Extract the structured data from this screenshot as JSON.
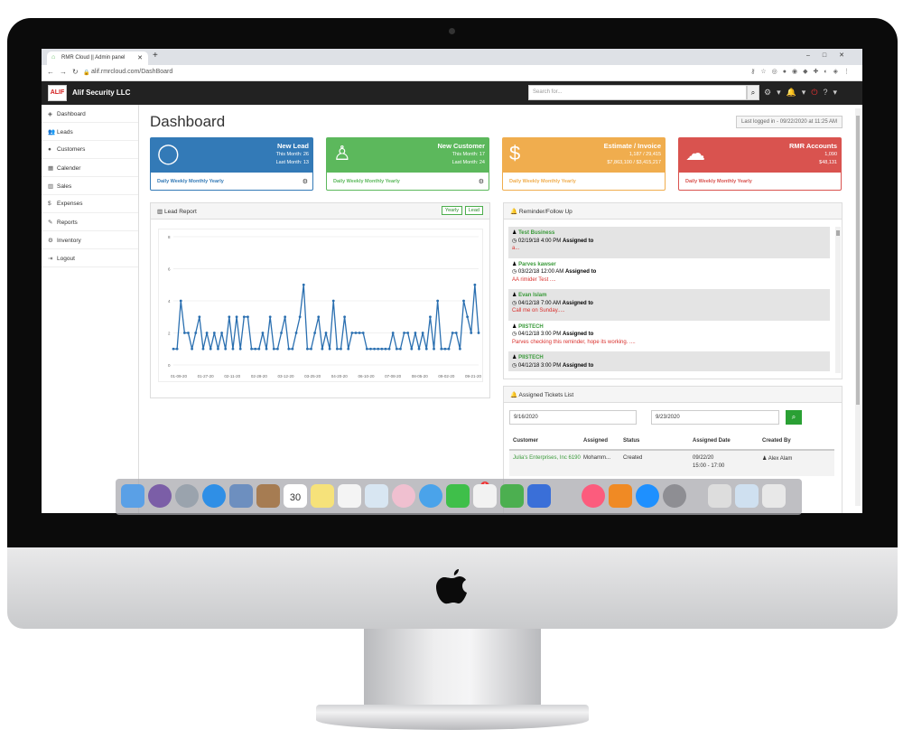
{
  "browser": {
    "tab_title": "RMR Cloud || Admin panel",
    "url": "alif.rmrcloud.com/DashBoard"
  },
  "app": {
    "brand": "Alif Security LLC",
    "logo_text": "ALIF",
    "search_placeholder": "Search for..."
  },
  "sidebar": {
    "items": [
      {
        "icon": "dashboard-icon",
        "label": "Dashboard"
      },
      {
        "icon": "leads-icon",
        "label": "Leads"
      },
      {
        "icon": "customers-icon",
        "label": "Customers"
      },
      {
        "icon": "calendar-icon",
        "label": "Calender"
      },
      {
        "icon": "sales-icon",
        "label": "Sales"
      },
      {
        "icon": "dollar-icon",
        "label": "Expenses"
      },
      {
        "icon": "reports-icon",
        "label": "Reports"
      },
      {
        "icon": "inventory-icon",
        "label": "Inventory"
      },
      {
        "icon": "logout-icon",
        "label": "Logout"
      }
    ]
  },
  "page": {
    "title": "Dashboard",
    "last_logged": "Last logged in - 09/22/2020 at 11:25 AM"
  },
  "cards": [
    {
      "title": "New Lead",
      "line1": "This Month: 26",
      "line2": "Last Month: 13",
      "footer": "Daily Weekly Monthly Yearly",
      "color": "#337ab7"
    },
    {
      "title": "New Customer",
      "line1": "This Month: 17",
      "line2": "Last Month: 24",
      "footer": "Daily Weekly Monthly Yearly",
      "color": "#5cb85c"
    },
    {
      "title": "Estimate / Invoice",
      "line1": "1,187 / 29,415",
      "line2": "$7,863,100 / $3,415,217",
      "footer": "Daily Weekly Monthly Yearly",
      "color": "#f0ad4e"
    },
    {
      "title": "RMR Accounts",
      "line1": "1,090",
      "line2": "$48,131",
      "footer": "Daily Weekly Monthly Yearly",
      "color": "#d9534f"
    }
  ],
  "lead_report": {
    "title": "Lead Report",
    "toggle1": "Yearly",
    "toggle2": "Lead"
  },
  "chart_data": {
    "type": "line",
    "title": "Lead Report",
    "ylim": [
      0,
      8
    ],
    "yticks": [
      "0",
      "2",
      "4",
      "6",
      "8"
    ],
    "xticks": [
      "01-09-20",
      "01-27-20",
      "02-11-20",
      "02-28-20",
      "03-12-20",
      "03-25-20",
      "04-20-20",
      "06-10-20",
      "07-08-20",
      "08-05-20",
      "09-02-20",
      "09-21-20"
    ],
    "values": [
      1,
      1,
      4,
      2,
      2,
      1,
      2,
      3,
      1,
      2,
      1,
      2,
      1,
      2,
      1,
      3,
      1,
      3,
      1,
      3,
      3,
      1,
      1,
      1,
      2,
      1,
      3,
      1,
      1,
      2,
      3,
      1,
      1,
      2,
      3,
      5,
      1,
      1,
      2,
      3,
      1,
      2,
      1,
      4,
      1,
      1,
      3,
      1,
      2,
      2,
      2,
      2,
      1,
      1,
      1,
      1,
      1,
      1,
      1,
      2,
      1,
      1,
      2,
      2,
      1,
      2,
      1,
      2,
      1,
      3,
      1,
      4,
      1,
      1,
      1,
      2,
      2,
      1,
      4,
      3,
      2,
      5,
      2
    ],
    "color": "#2a6fb0"
  },
  "reminders": {
    "title": "Reminder/Follow Up",
    "items": [
      {
        "name": "Test Business",
        "date": "02/19/18 4:00 PM",
        "assigned": "Assigned to",
        "msg": "a..."
      },
      {
        "name": "Parves kawser",
        "date": "03/22/18 12:00 AM",
        "assigned": "Assigned to",
        "msg": "AA rimider Test ...."
      },
      {
        "name": "Evan Islam",
        "date": "04/12/18 7:00 AM",
        "assigned": "Assigned to",
        "msg": "Call me on Sunday....."
      },
      {
        "name": "PIISTECH",
        "date": "04/12/18 3:00 PM",
        "assigned": "Assigned to",
        "msg": "Parves checking this reminder, hope its working. ...."
      },
      {
        "name": "PIISTECH",
        "date": "04/12/18 3:00 PM",
        "assigned": "Assigned to",
        "msg": ""
      }
    ]
  },
  "tickets": {
    "title": "Assigned Tickets List",
    "date_from": "9/16/2020",
    "date_to": "9/23/2020",
    "columns": [
      "Customer",
      "Assigned",
      "Status",
      "Assigned Date",
      "Created By"
    ],
    "rows": [
      {
        "customer": "Julia's Enterprises, Inc 6190",
        "assigned": "Mohamm...",
        "status": "Created",
        "date": "09/22/20",
        "time": "15:00 - 17:00",
        "created_by": "Alex Alam"
      }
    ]
  },
  "dock": {
    "calendar_day": "30",
    "badge": "1"
  }
}
